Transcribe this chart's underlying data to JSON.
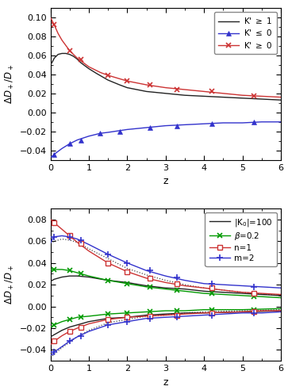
{
  "top_panel": {
    "ylabel": "$\\Delta D_+ / D_+$",
    "xlabel": "z",
    "ylim": [
      -0.05,
      0.11
    ],
    "yticks": [
      -0.04,
      -0.02,
      0.0,
      0.02,
      0.04,
      0.06,
      0.08,
      0.1
    ],
    "xlim": [
      0,
      6
    ],
    "xticks": [
      0,
      1,
      2,
      3,
      4,
      5,
      6
    ],
    "black_curve": {
      "z": [
        0.0,
        0.05,
        0.1,
        0.2,
        0.3,
        0.4,
        0.5,
        0.6,
        0.7,
        0.8,
        1.0,
        1.2,
        1.5,
        1.8,
        2.0,
        2.5,
        3.0,
        3.5,
        4.0,
        4.5,
        5.0,
        5.5,
        6.0
      ],
      "y": [
        0.05,
        0.053,
        0.057,
        0.061,
        0.062,
        0.062,
        0.061,
        0.059,
        0.056,
        0.052,
        0.046,
        0.041,
        0.034,
        0.029,
        0.026,
        0.022,
        0.02,
        0.018,
        0.017,
        0.016,
        0.015,
        0.014,
        0.013
      ]
    },
    "blue_curve": {
      "z": [
        0.0,
        0.05,
        0.1,
        0.2,
        0.3,
        0.5,
        0.7,
        1.0,
        1.3,
        1.5,
        2.0,
        2.5,
        3.0,
        3.5,
        4.0,
        4.5,
        5.0,
        5.5,
        6.0
      ],
      "y": [
        -0.047,
        -0.046,
        -0.044,
        -0.041,
        -0.038,
        -0.033,
        -0.029,
        -0.025,
        -0.022,
        -0.021,
        -0.018,
        -0.016,
        -0.014,
        -0.013,
        -0.012,
        -0.011,
        -0.011,
        -0.01,
        -0.01
      ],
      "markers_z": [
        0.1,
        0.5,
        0.8,
        1.3,
        1.8,
        2.6,
        3.3,
        4.2,
        5.3
      ],
      "markers_y": [
        -0.044,
        -0.033,
        -0.029,
        -0.022,
        -0.02,
        -0.016,
        -0.014,
        -0.012,
        -0.01
      ]
    },
    "red_curve": {
      "z": [
        0.0,
        0.05,
        0.1,
        0.2,
        0.3,
        0.5,
        0.7,
        1.0,
        1.3,
        1.5,
        2.0,
        2.5,
        3.0,
        3.5,
        4.0,
        4.5,
        5.0,
        5.5,
        6.0
      ],
      "y": [
        0.1,
        0.096,
        0.092,
        0.083,
        0.076,
        0.065,
        0.057,
        0.048,
        0.042,
        0.039,
        0.033,
        0.029,
        0.026,
        0.024,
        0.022,
        0.02,
        0.018,
        0.017,
        0.016
      ],
      "markers_z": [
        0.1,
        0.5,
        0.8,
        1.5,
        2.0,
        2.6,
        3.3,
        4.2,
        5.3
      ],
      "markers_y": [
        0.092,
        0.065,
        0.056,
        0.039,
        0.033,
        0.029,
        0.024,
        0.022,
        0.017
      ]
    }
  },
  "bottom_panel": {
    "ylabel": "$\\Delta D_+ / D_+$",
    "xlabel": "z",
    "ylim": [
      -0.05,
      0.09
    ],
    "yticks": [
      -0.04,
      -0.02,
      0.0,
      0.02,
      0.04,
      0.06,
      0.08
    ],
    "xlim": [
      0,
      6
    ],
    "xticks": [
      0,
      1,
      2,
      3,
      4,
      5,
      6
    ],
    "black_curve_top": {
      "z": [
        0.0,
        0.1,
        0.3,
        0.5,
        0.7,
        1.0,
        1.5,
        2.0,
        2.5,
        3.0,
        3.5,
        4.0,
        5.0,
        6.0
      ],
      "y": [
        0.023,
        0.025,
        0.027,
        0.028,
        0.028,
        0.027,
        0.024,
        0.022,
        0.019,
        0.017,
        0.016,
        0.014,
        0.012,
        0.01
      ]
    },
    "black_curve_bottom": {
      "z": [
        0.0,
        0.1,
        0.3,
        0.5,
        0.7,
        1.0,
        1.5,
        2.0,
        2.5,
        3.0,
        3.5,
        4.0,
        5.0,
        6.0
      ],
      "y": [
        -0.028,
        -0.026,
        -0.022,
        -0.019,
        -0.017,
        -0.014,
        -0.011,
        -0.01,
        -0.008,
        -0.007,
        -0.006,
        -0.006,
        -0.005,
        -0.004
      ]
    },
    "dotted_top": {
      "z": [
        0.0,
        0.1,
        0.3,
        0.5,
        0.7,
        1.0,
        1.5,
        2.0,
        2.5,
        3.0,
        3.5,
        4.0,
        5.0,
        6.0
      ],
      "y": [
        0.058,
        0.06,
        0.062,
        0.061,
        0.059,
        0.053,
        0.044,
        0.035,
        0.029,
        0.024,
        0.02,
        0.017,
        0.013,
        0.01
      ]
    },
    "dotted_bottom": {
      "z": [
        0.0,
        0.1,
        0.3,
        0.5,
        0.7,
        1.0,
        1.5,
        2.0,
        2.5,
        3.0,
        3.5,
        4.0,
        5.0,
        6.0
      ],
      "y": [
        -0.047,
        -0.044,
        -0.038,
        -0.033,
        -0.028,
        -0.022,
        -0.015,
        -0.012,
        -0.009,
        -0.008,
        -0.006,
        -0.005,
        -0.004,
        -0.003
      ]
    },
    "green_curve_top": {
      "z": [
        0.0,
        0.1,
        0.3,
        0.5,
        0.7,
        1.0,
        1.5,
        2.0,
        2.5,
        3.0,
        3.5,
        4.0,
        5.0,
        6.0
      ],
      "y": [
        0.034,
        0.034,
        0.034,
        0.033,
        0.031,
        0.028,
        0.024,
        0.021,
        0.018,
        0.016,
        0.014,
        0.012,
        0.01,
        0.008
      ],
      "markers_z": [
        0.1,
        0.5,
        0.8,
        1.5,
        2.0,
        2.6,
        3.3,
        4.2,
        5.3
      ],
      "markers_y": [
        0.034,
        0.033,
        0.03,
        0.024,
        0.021,
        0.018,
        0.015,
        0.012,
        0.009
      ]
    },
    "green_curve_bottom": {
      "z": [
        0.0,
        0.1,
        0.3,
        0.5,
        0.7,
        1.0,
        1.5,
        2.0,
        2.5,
        3.0,
        3.5,
        4.0,
        5.0,
        6.0
      ],
      "y": [
        -0.019,
        -0.017,
        -0.014,
        -0.012,
        -0.01,
        -0.009,
        -0.007,
        -0.006,
        -0.005,
        -0.004,
        -0.004,
        -0.003,
        -0.003,
        -0.002
      ],
      "markers_z": [
        0.1,
        0.5,
        0.8,
        1.5,
        2.0,
        2.6,
        3.3,
        4.2,
        5.3
      ],
      "markers_y": [
        -0.017,
        -0.012,
        -0.01,
        -0.007,
        -0.006,
        -0.005,
        -0.004,
        -0.003,
        -0.003
      ]
    },
    "red_curve_top": {
      "z": [
        0.0,
        0.05,
        0.1,
        0.3,
        0.5,
        0.7,
        1.0,
        1.5,
        2.0,
        2.5,
        3.0,
        3.5,
        4.0,
        5.0,
        5.5,
        6.0
      ],
      "y": [
        0.08,
        0.079,
        0.077,
        0.071,
        0.065,
        0.059,
        0.051,
        0.04,
        0.032,
        0.026,
        0.022,
        0.019,
        0.017,
        0.013,
        0.012,
        0.011
      ],
      "markers_z": [
        0.1,
        0.5,
        0.8,
        1.5,
        2.0,
        2.6,
        3.3,
        4.2,
        5.3
      ],
      "markers_y": [
        0.077,
        0.065,
        0.058,
        0.04,
        0.032,
        0.026,
        0.021,
        0.017,
        0.012
      ]
    },
    "red_curve_bottom": {
      "z": [
        0.0,
        0.05,
        0.1,
        0.3,
        0.5,
        0.7,
        1.0,
        1.5,
        2.0,
        2.5,
        3.0,
        3.5,
        4.0,
        5.0,
        5.5,
        6.0
      ],
      "y": [
        -0.035,
        -0.034,
        -0.032,
        -0.027,
        -0.023,
        -0.02,
        -0.016,
        -0.012,
        -0.01,
        -0.009,
        -0.008,
        -0.007,
        -0.006,
        -0.005,
        -0.004,
        -0.004
      ],
      "markers_z": [
        0.1,
        0.5,
        0.8,
        1.5,
        2.0,
        2.6,
        3.3,
        4.2,
        5.3
      ],
      "markers_y": [
        -0.032,
        -0.023,
        -0.019,
        -0.012,
        -0.01,
        -0.009,
        -0.008,
        -0.006,
        -0.005
      ]
    },
    "blue_curve_top": {
      "z": [
        0.0,
        0.05,
        0.1,
        0.3,
        0.5,
        0.7,
        1.0,
        1.5,
        2.0,
        2.5,
        3.0,
        3.5,
        4.0,
        5.0,
        5.5,
        6.0
      ],
      "y": [
        0.058,
        0.062,
        0.064,
        0.065,
        0.064,
        0.062,
        0.057,
        0.048,
        0.04,
        0.033,
        0.028,
        0.024,
        0.021,
        0.019,
        0.018,
        0.017
      ],
      "markers_z": [
        0.1,
        0.5,
        0.8,
        1.5,
        2.0,
        2.6,
        3.3,
        4.2,
        5.3
      ],
      "markers_y": [
        0.064,
        0.064,
        0.061,
        0.048,
        0.04,
        0.033,
        0.027,
        0.021,
        0.018
      ]
    },
    "blue_curve_bottom": {
      "z": [
        0.0,
        0.05,
        0.1,
        0.3,
        0.5,
        0.7,
        1.0,
        1.5,
        2.0,
        2.5,
        3.0,
        3.5,
        4.0,
        5.0,
        5.5,
        6.0
      ],
      "y": [
        -0.045,
        -0.044,
        -0.042,
        -0.037,
        -0.032,
        -0.028,
        -0.023,
        -0.017,
        -0.014,
        -0.011,
        -0.01,
        -0.009,
        -0.008,
        -0.006,
        -0.006,
        -0.005
      ],
      "markers_z": [
        0.1,
        0.5,
        0.8,
        1.5,
        2.0,
        2.6,
        3.3,
        4.2,
        5.3
      ],
      "markers_y": [
        -0.042,
        -0.032,
        -0.027,
        -0.017,
        -0.014,
        -0.011,
        -0.01,
        -0.008,
        -0.006
      ]
    }
  }
}
